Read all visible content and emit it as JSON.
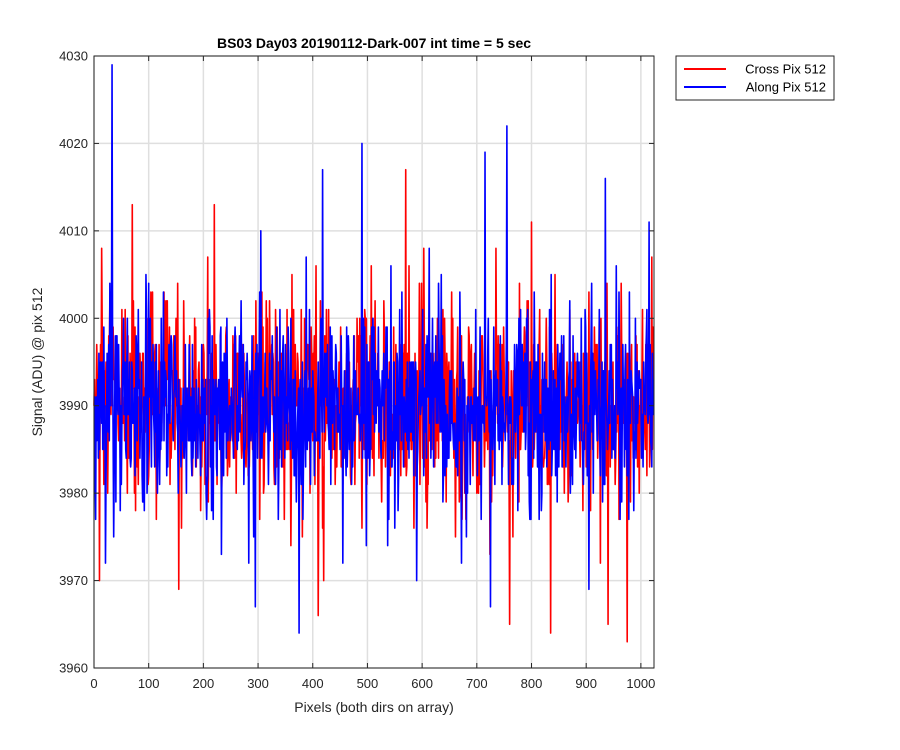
{
  "chart_data": {
    "type": "line",
    "title": "BS03 Day03 20190112-Dark-007 int time = 5 sec",
    "xlabel": "Pixels (both dirs on array)",
    "ylabel": "Signal (ADU) @ pix 512",
    "xlim": [
      0,
      1024
    ],
    "ylim": [
      3960,
      4030
    ],
    "xticks": [
      0,
      100,
      200,
      300,
      400,
      500,
      600,
      700,
      800,
      900,
      1000
    ],
    "yticks": [
      3960,
      3970,
      3980,
      3990,
      4000,
      4010,
      4020,
      4030
    ],
    "grid": true,
    "legend_position": "outside-top-right",
    "noise": {
      "num_points": 1024,
      "mean": 3990,
      "std": 6
    },
    "series": [
      {
        "name": "Cross Pix 512",
        "color": "#ff0000",
        "peaks": [
          {
            "x": 14,
            "y": 4008
          },
          {
            "x": 10,
            "y": 3970
          },
          {
            "x": 70,
            "y": 4013
          },
          {
            "x": 155,
            "y": 3969
          },
          {
            "x": 220,
            "y": 4013
          },
          {
            "x": 410,
            "y": 3966
          },
          {
            "x": 420,
            "y": 3970
          },
          {
            "x": 570,
            "y": 4017
          },
          {
            "x": 760,
            "y": 3965
          },
          {
            "x": 800,
            "y": 4011
          },
          {
            "x": 835,
            "y": 3964
          },
          {
            "x": 940,
            "y": 3965
          },
          {
            "x": 975,
            "y": 3963
          },
          {
            "x": 1020,
            "y": 4007
          }
        ]
      },
      {
        "name": "Along Pix 512",
        "color": "#0000ff",
        "peaks": [
          {
            "x": 33,
            "y": 4029
          },
          {
            "x": 295,
            "y": 3967
          },
          {
            "x": 305,
            "y": 4010
          },
          {
            "x": 375,
            "y": 3964
          },
          {
            "x": 418,
            "y": 4017
          },
          {
            "x": 490,
            "y": 4020
          },
          {
            "x": 715,
            "y": 4019
          },
          {
            "x": 725,
            "y": 3967
          },
          {
            "x": 755,
            "y": 4022
          },
          {
            "x": 935,
            "y": 4016
          },
          {
            "x": 905,
            "y": 3969
          },
          {
            "x": 1015,
            "y": 4011
          },
          {
            "x": 590,
            "y": 3970
          }
        ]
      }
    ]
  }
}
